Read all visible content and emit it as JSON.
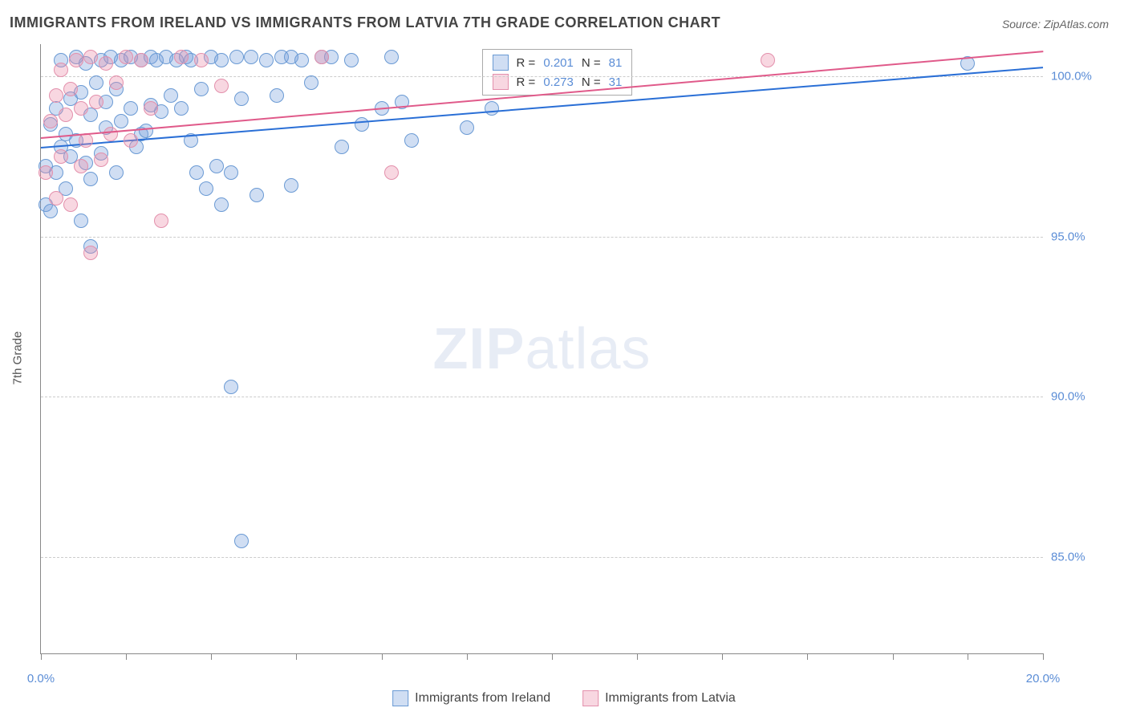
{
  "title": "IMMIGRANTS FROM IRELAND VS IMMIGRANTS FROM LATVIA 7TH GRADE CORRELATION CHART",
  "source": "Source: ZipAtlas.com",
  "ylabel": "7th Grade",
  "watermark_a": "ZIP",
  "watermark_b": "atlas",
  "chart": {
    "type": "scatter",
    "xlim": [
      0,
      20
    ],
    "ylim": [
      82,
      101
    ],
    "xticks": [
      0,
      1.7,
      3.4,
      5.1,
      6.8,
      8.5,
      10.2,
      11.9,
      13.6,
      15.3,
      17,
      18.5,
      20
    ],
    "xtick_labels": {
      "0": "0.0%",
      "20": "20.0%"
    },
    "yticks": [
      85,
      90,
      95,
      100
    ],
    "ytick_labels": {
      "85": "85.0%",
      "90": "90.0%",
      "95": "95.0%",
      "100": "100.0%"
    },
    "grid_color": "#cccccc",
    "axis_color": "#888888",
    "background_color": "#ffffff",
    "point_radius": 9,
    "series": [
      {
        "name": "Immigrants from Ireland",
        "fill": "rgba(120,160,220,0.35)",
        "stroke": "#6a9ad4",
        "trend_color": "#2a6fd6",
        "R": "0.201",
        "N": "81",
        "trend": {
          "x1": 0,
          "y1": 97.8,
          "x2": 20,
          "y2": 100.3
        },
        "points": [
          [
            0.1,
            96.0
          ],
          [
            0.1,
            97.2
          ],
          [
            0.2,
            95.8
          ],
          [
            0.2,
            98.5
          ],
          [
            0.3,
            97.0
          ],
          [
            0.3,
            99.0
          ],
          [
            0.4,
            97.8
          ],
          [
            0.4,
            100.5
          ],
          [
            0.5,
            98.2
          ],
          [
            0.5,
            96.5
          ],
          [
            0.6,
            99.3
          ],
          [
            0.6,
            97.5
          ],
          [
            0.7,
            100.6
          ],
          [
            0.7,
            98.0
          ],
          [
            0.8,
            95.5
          ],
          [
            0.8,
            99.5
          ],
          [
            0.9,
            97.3
          ],
          [
            0.9,
            100.4
          ],
          [
            1.0,
            98.8
          ],
          [
            1.0,
            96.8
          ],
          [
            1.1,
            99.8
          ],
          [
            1.2,
            100.5
          ],
          [
            1.2,
            97.6
          ],
          [
            1.3,
            98.4
          ],
          [
            1.3,
            99.2
          ],
          [
            1.4,
            100.6
          ],
          [
            1.5,
            97.0
          ],
          [
            1.5,
            99.6
          ],
          [
            1.6,
            98.6
          ],
          [
            1.6,
            100.5
          ],
          [
            1.8,
            99.0
          ],
          [
            1.8,
            100.6
          ],
          [
            1.9,
            97.8
          ],
          [
            2.0,
            100.5
          ],
          [
            2.0,
            98.2
          ],
          [
            2.1,
            98.3
          ],
          [
            2.2,
            100.6
          ],
          [
            2.2,
            99.1
          ],
          [
            2.3,
            100.5
          ],
          [
            2.4,
            98.9
          ],
          [
            2.5,
            100.6
          ],
          [
            2.6,
            99.4
          ],
          [
            2.7,
            100.5
          ],
          [
            2.8,
            99.0
          ],
          [
            2.9,
            100.6
          ],
          [
            3.0,
            98.0
          ],
          [
            3.0,
            100.5
          ],
          [
            3.1,
            97.0
          ],
          [
            3.2,
            99.6
          ],
          [
            3.3,
            96.5
          ],
          [
            3.4,
            100.6
          ],
          [
            3.5,
            97.2
          ],
          [
            3.6,
            96.0
          ],
          [
            3.6,
            100.5
          ],
          [
            3.8,
            97.0
          ],
          [
            3.8,
            90.3
          ],
          [
            3.9,
            100.6
          ],
          [
            4.0,
            85.5
          ],
          [
            4.0,
            99.3
          ],
          [
            4.2,
            100.6
          ],
          [
            4.3,
            96.3
          ],
          [
            4.5,
            100.5
          ],
          [
            4.7,
            99.4
          ],
          [
            4.8,
            100.6
          ],
          [
            5.0,
            100.6
          ],
          [
            5.0,
            96.6
          ],
          [
            5.2,
            100.5
          ],
          [
            5.4,
            99.8
          ],
          [
            5.6,
            100.6
          ],
          [
            5.8,
            100.6
          ],
          [
            6.0,
            97.8
          ],
          [
            6.2,
            100.5
          ],
          [
            6.4,
            98.5
          ],
          [
            6.8,
            99.0
          ],
          [
            7.0,
            100.6
          ],
          [
            7.2,
            99.2
          ],
          [
            7.4,
            98.0
          ],
          [
            8.5,
            98.4
          ],
          [
            9.0,
            99.0
          ],
          [
            18.5,
            100.4
          ],
          [
            1.0,
            94.7
          ]
        ]
      },
      {
        "name": "Immigrants from Latvia",
        "fill": "rgba(235,140,170,0.35)",
        "stroke": "#e390ac",
        "trend_color": "#e05a8a",
        "R": "0.273",
        "N": "31",
        "trend": {
          "x1": 0,
          "y1": 98.1,
          "x2": 20,
          "y2": 100.8
        },
        "points": [
          [
            0.1,
            97.0
          ],
          [
            0.2,
            98.6
          ],
          [
            0.3,
            99.4
          ],
          [
            0.3,
            96.2
          ],
          [
            0.4,
            100.2
          ],
          [
            0.4,
            97.5
          ],
          [
            0.5,
            98.8
          ],
          [
            0.6,
            99.6
          ],
          [
            0.6,
            96.0
          ],
          [
            0.7,
            100.5
          ],
          [
            0.8,
            97.2
          ],
          [
            0.8,
            99.0
          ],
          [
            0.9,
            98.0
          ],
          [
            1.0,
            100.6
          ],
          [
            1.0,
            94.5
          ],
          [
            1.1,
            99.2
          ],
          [
            1.2,
            97.4
          ],
          [
            1.3,
            100.4
          ],
          [
            1.4,
            98.2
          ],
          [
            1.5,
            99.8
          ],
          [
            1.7,
            100.6
          ],
          [
            1.8,
            98.0
          ],
          [
            2.0,
            100.5
          ],
          [
            2.2,
            99.0
          ],
          [
            2.4,
            95.5
          ],
          [
            2.8,
            100.6
          ],
          [
            3.2,
            100.5
          ],
          [
            3.6,
            99.7
          ],
          [
            5.6,
            100.6
          ],
          [
            7.0,
            97.0
          ],
          [
            14.5,
            100.5
          ]
        ]
      }
    ]
  },
  "legend": {
    "series1_label": "Immigrants from Ireland",
    "series2_label": "Immigrants from Latvia"
  },
  "rbox": {
    "r1_text_a": "R = ",
    "r1_val": "0.201",
    "r1_text_b": "   N = ",
    "r1_n": "81",
    "r2_text_a": "R = ",
    "r2_val": "0.273",
    "r2_text_b": "   N = ",
    "r2_n": "31"
  }
}
